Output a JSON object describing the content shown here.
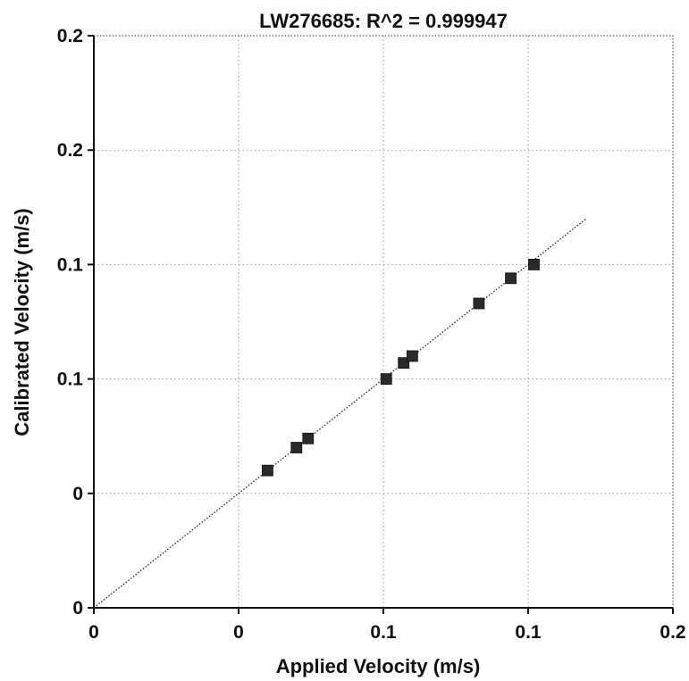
{
  "chart_data": {
    "type": "scatter",
    "title": "LW276685: R^2 = 0.999947",
    "xlabel": "Applied Velocity (m/s)",
    "ylabel": "Calibrated Velocity (m/s)",
    "xlim": [
      -0.05,
      0.15
    ],
    "ylim": [
      -0.05,
      0.2
    ],
    "x_ticks": [
      {
        "value": -0.05,
        "label": "0"
      },
      {
        "value": 0.0,
        "label": "0"
      },
      {
        "value": 0.05,
        "label": "0.1"
      },
      {
        "value": 0.1,
        "label": "0.1"
      },
      {
        "value": 0.15,
        "label": "0.2"
      }
    ],
    "y_ticks": [
      {
        "value": -0.05,
        "label": "0"
      },
      {
        "value": 0.0,
        "label": "0"
      },
      {
        "value": 0.05,
        "label": "0.1"
      },
      {
        "value": 0.1,
        "label": "0.1"
      },
      {
        "value": 0.15,
        "label": "0.2"
      },
      {
        "value": 0.2,
        "label": "0.2"
      }
    ],
    "grid": true,
    "series": [
      {
        "name": "",
        "marker": "square",
        "color": "#2a2a2a",
        "x": [
          0.01,
          0.02,
          0.024,
          0.051,
          0.057,
          0.06,
          0.083,
          0.094,
          0.102
        ],
        "y": [
          0.01,
          0.02,
          0.024,
          0.05,
          0.057,
          0.06,
          0.083,
          0.094,
          0.1
        ]
      }
    ],
    "fit_line": {
      "x": [
        -0.05,
        0.12
      ],
      "y": [
        -0.05,
        0.12
      ],
      "color": "#222222"
    }
  }
}
